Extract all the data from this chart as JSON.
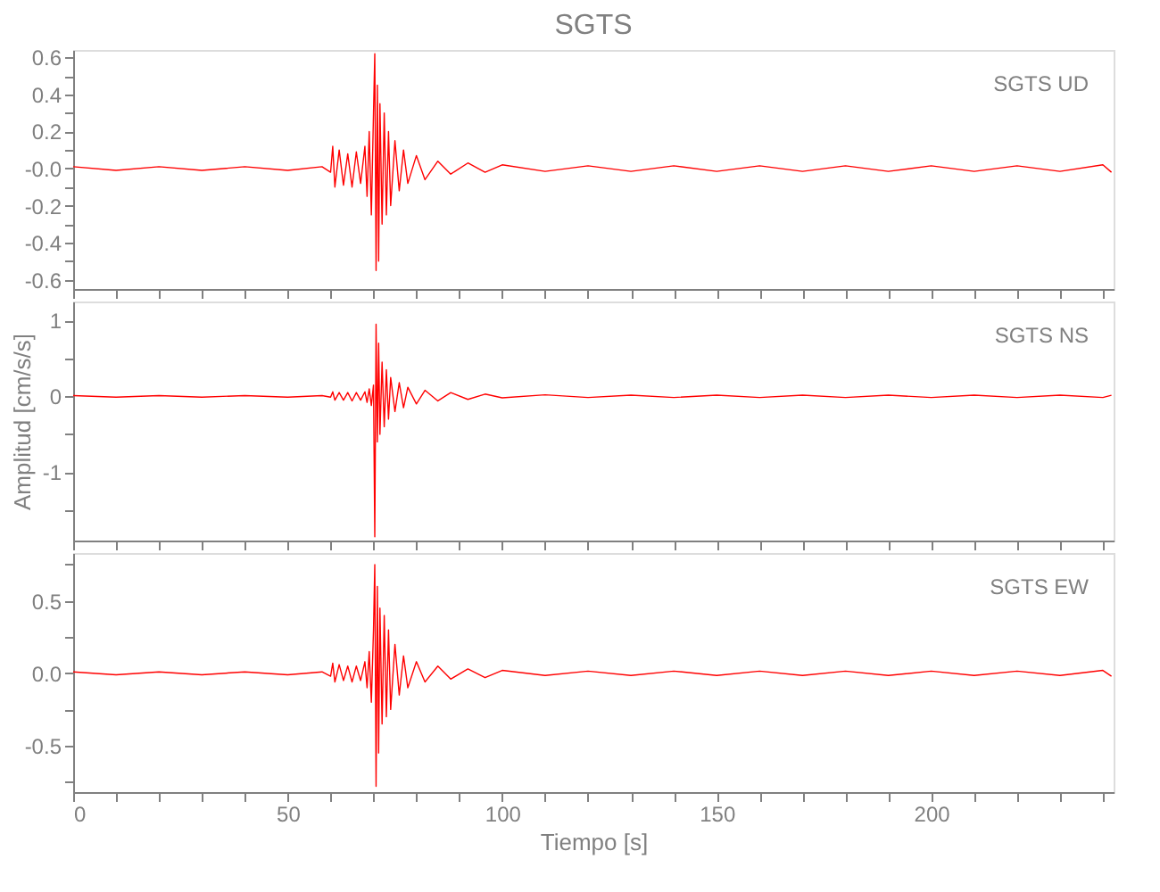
{
  "chart_data": [
    {
      "type": "line",
      "title": "SGTS",
      "annotations": [
        "SGTS   UD"
      ],
      "tick_labels": "y",
      "grid": false,
      "x": [
        0,
        10,
        20,
        30,
        40,
        50,
        58,
        60,
        60.5,
        61,
        62,
        63,
        64,
        65,
        66,
        67,
        68,
        68.5,
        69,
        69.5,
        70,
        70.3,
        70.6,
        70.9,
        71.2,
        71.5,
        72,
        72.5,
        73,
        73.5,
        74,
        75,
        76,
        77,
        78,
        80,
        82,
        85,
        88,
        92,
        96,
        100,
        110,
        120,
        130,
        140,
        150,
        160,
        170,
        180,
        190,
        200,
        210,
        220,
        230,
        240,
        242
      ],
      "series": [
        {
          "color": "#ff0000",
          "values": [
            0.01,
            -0.01,
            0.01,
            -0.01,
            0.01,
            -0.01,
            0.01,
            -0.02,
            0.12,
            -0.1,
            0.1,
            -0.09,
            0.08,
            -0.1,
            0.09,
            -0.08,
            0.12,
            -0.15,
            0.2,
            -0.25,
            0.3,
            0.62,
            -0.55,
            0.45,
            -0.5,
            0.35,
            -0.3,
            0.3,
            -0.25,
            0.2,
            -0.2,
            0.15,
            -0.12,
            0.1,
            -0.08,
            0.07,
            -0.06,
            0.04,
            -0.03,
            0.03,
            -0.02,
            0.02,
            -0.015,
            0.015,
            -0.015,
            0.015,
            -0.015,
            0.015,
            -0.015,
            0.015,
            -0.015,
            0.015,
            -0.015,
            0.015,
            -0.015,
            0.02,
            -0.02
          ]
        }
      ],
      "xlim": [
        0,
        242.5
      ],
      "xticks": [
        0,
        {
          "value": 10,
          "label": null
        },
        {
          "value": 20,
          "label": null
        },
        {
          "value": 30,
          "label": null
        },
        {
          "value": 40,
          "label": null
        },
        50,
        {
          "value": 60,
          "label": null
        },
        {
          "value": 70,
          "label": null
        },
        {
          "value": 80,
          "label": null
        },
        {
          "value": 90,
          "label": null
        },
        100,
        {
          "value": 110,
          "label": null
        },
        {
          "value": 120,
          "label": null
        },
        {
          "value": 130,
          "label": null
        },
        {
          "value": 140,
          "label": null
        },
        150,
        {
          "value": 160,
          "label": null
        },
        {
          "value": 170,
          "label": null
        },
        {
          "value": 180,
          "label": null
        },
        {
          "value": 190,
          "label": null
        },
        200,
        {
          "value": 210,
          "label": null
        },
        {
          "value": 220,
          "label": null
        },
        {
          "value": 230,
          "label": null
        },
        {
          "value": 240,
          "label": null
        }
      ],
      "ylim": [
        -0.65,
        0.64
      ],
      "yticks": [
        -0.6,
        {
          "value": -0.5,
          "label": null
        },
        -0.4,
        {
          "value": -0.3,
          "label": null
        },
        -0.2,
        {
          "value": -0.1,
          "label": null
        },
        {
          "value": 0,
          "label": "-0.0"
        },
        {
          "value": 0.1,
          "label": null
        },
        0.2,
        {
          "value": 0.3,
          "label": null
        },
        0.4,
        {
          "value": 0.5,
          "label": null
        },
        0.6
      ]
    },
    {
      "type": "line",
      "ylabel": "Amplitud [cm/s/s]",
      "annotations": [
        "SGTS   NS"
      ],
      "tick_labels": "y",
      "grid": false,
      "x": [
        0,
        10,
        20,
        30,
        40,
        50,
        58,
        60,
        60.5,
        61,
        62,
        63,
        64,
        65,
        66,
        67,
        68,
        68.5,
        69,
        69.5,
        70,
        70.3,
        70.6,
        70.9,
        71.2,
        71.5,
        72,
        72.5,
        73,
        73.5,
        74,
        75,
        76,
        77,
        78,
        80,
        82,
        85,
        88,
        92,
        96,
        100,
        110,
        120,
        130,
        140,
        150,
        160,
        170,
        180,
        190,
        200,
        210,
        220,
        230,
        240,
        242
      ],
      "series": [
        {
          "color": "#ff0000",
          "values": [
            0.01,
            -0.01,
            0.01,
            -0.01,
            0.01,
            -0.01,
            0.01,
            -0.01,
            0.06,
            -0.05,
            0.05,
            -0.05,
            0.05,
            -0.06,
            0.05,
            -0.05,
            0.06,
            -0.08,
            0.1,
            -0.12,
            0.15,
            -1.85,
            0.95,
            -0.6,
            0.7,
            -0.5,
            0.45,
            -0.4,
            0.35,
            -0.3,
            0.25,
            -0.2,
            0.18,
            -0.15,
            0.12,
            -0.1,
            0.08,
            -0.06,
            0.05,
            -0.04,
            0.03,
            -0.02,
            0.02,
            -0.015,
            0.015,
            -0.015,
            0.015,
            -0.015,
            0.015,
            -0.015,
            0.015,
            -0.015,
            0.015,
            -0.015,
            0.015,
            -0.015,
            0.015
          ]
        }
      ],
      "xlim": [
        0,
        242.5
      ],
      "xticks": [
        0,
        {
          "value": 10,
          "label": null
        },
        {
          "value": 20,
          "label": null
        },
        {
          "value": 30,
          "label": null
        },
        {
          "value": 40,
          "label": null
        },
        50,
        {
          "value": 60,
          "label": null
        },
        {
          "value": 70,
          "label": null
        },
        {
          "value": 80,
          "label": null
        },
        {
          "value": 90,
          "label": null
        },
        100,
        {
          "value": 110,
          "label": null
        },
        {
          "value": 120,
          "label": null
        },
        {
          "value": 130,
          "label": null
        },
        {
          "value": 140,
          "label": null
        },
        150,
        {
          "value": 160,
          "label": null
        },
        {
          "value": 170,
          "label": null
        },
        {
          "value": 180,
          "label": null
        },
        {
          "value": 190,
          "label": null
        },
        200,
        {
          "value": 210,
          "label": null
        },
        {
          "value": 220,
          "label": null
        },
        {
          "value": 230,
          "label": null
        },
        {
          "value": 240,
          "label": null
        }
      ],
      "ylim": [
        -1.9,
        1.25
      ],
      "yticks": [
        {
          "value": -1.5,
          "label": null
        },
        -1,
        {
          "value": -0.5,
          "label": null
        },
        0,
        {
          "value": 0.5,
          "label": null
        },
        1
      ]
    },
    {
      "type": "line",
      "xlabel": "Tiempo [s]",
      "annotations": [
        "SGTS   EW"
      ],
      "grid": false,
      "x": [
        0,
        10,
        20,
        30,
        40,
        50,
        58,
        60,
        60.5,
        61,
        62,
        63,
        64,
        65,
        66,
        67,
        68,
        68.5,
        69,
        69.5,
        70,
        70.3,
        70.6,
        70.9,
        71.2,
        71.5,
        72,
        72.5,
        73,
        73.5,
        74,
        75,
        76,
        77,
        78,
        80,
        82,
        85,
        88,
        92,
        96,
        100,
        110,
        120,
        130,
        140,
        150,
        160,
        170,
        180,
        190,
        200,
        210,
        220,
        230,
        240,
        242
      ],
      "series": [
        {
          "color": "#ff0000",
          "values": [
            0.01,
            -0.01,
            0.01,
            -0.01,
            0.01,
            -0.01,
            0.01,
            -0.02,
            0.07,
            -0.06,
            0.06,
            -0.05,
            0.05,
            -0.06,
            0.05,
            -0.05,
            0.08,
            -0.1,
            0.15,
            -0.2,
            0.3,
            0.75,
            -0.78,
            0.6,
            -0.55,
            0.45,
            -0.35,
            0.4,
            -0.3,
            0.3,
            -0.25,
            0.2,
            -0.15,
            0.12,
            -0.1,
            0.08,
            -0.06,
            0.05,
            -0.04,
            0.03,
            -0.03,
            0.02,
            -0.015,
            0.015,
            -0.015,
            0.015,
            -0.015,
            0.015,
            -0.015,
            0.015,
            -0.015,
            0.015,
            -0.015,
            0.015,
            -0.015,
            0.02,
            -0.02
          ]
        }
      ],
      "xlim": [
        0,
        242.5
      ],
      "xticks": [
        0,
        {
          "value": 10,
          "label": null
        },
        {
          "value": 20,
          "label": null
        },
        {
          "value": 30,
          "label": null
        },
        {
          "value": 40,
          "label": null
        },
        50,
        {
          "value": 60,
          "label": null
        },
        {
          "value": 70,
          "label": null
        },
        {
          "value": 80,
          "label": null
        },
        {
          "value": 90,
          "label": null
        },
        100,
        {
          "value": 110,
          "label": null
        },
        {
          "value": 120,
          "label": null
        },
        {
          "value": 130,
          "label": null
        },
        {
          "value": 140,
          "label": null
        },
        150,
        {
          "value": 160,
          "label": null
        },
        {
          "value": 170,
          "label": null
        },
        {
          "value": 180,
          "label": null
        },
        {
          "value": 190,
          "label": null
        },
        200,
        {
          "value": 210,
          "label": null
        },
        {
          "value": 220,
          "label": null
        },
        {
          "value": 230,
          "label": null
        },
        {
          "value": 240,
          "label": null
        }
      ],
      "ylim": [
        -0.82,
        0.83
      ],
      "yticks": [
        {
          "value": -0.75,
          "label": null
        },
        -0.5,
        {
          "value": -0.25,
          "label": null
        },
        {
          "value": 0,
          "label": "0.0"
        },
        {
          "value": 0.25,
          "label": null
        },
        0.5,
        {
          "value": 0.75,
          "label": null
        }
      ]
    }
  ]
}
